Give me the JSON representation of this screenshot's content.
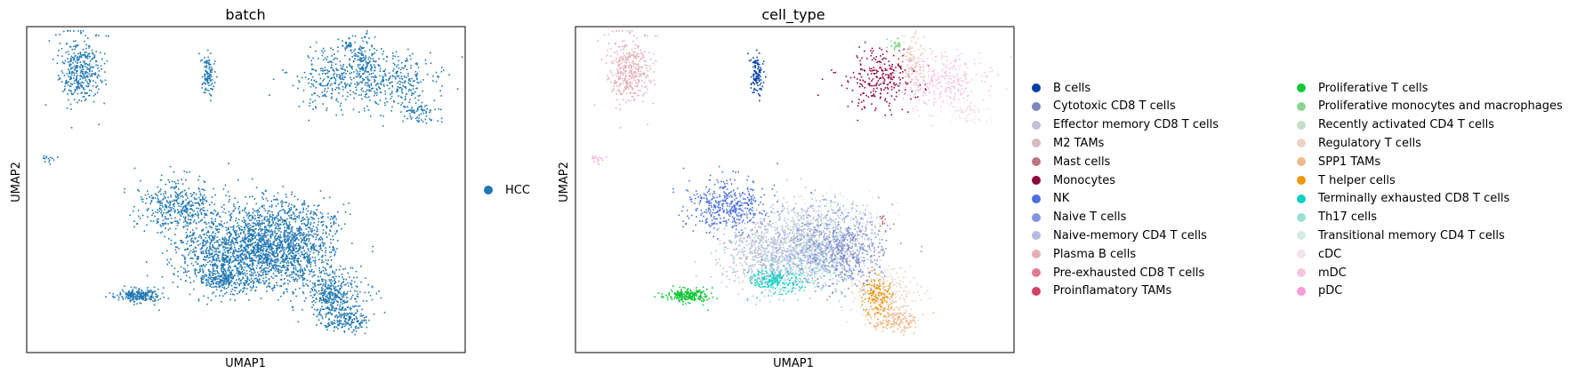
{
  "chart_data": [
    {
      "type": "scatter",
      "title": "batch",
      "xlabel": "UMAP1",
      "ylabel": "UMAP2",
      "legend_placement": "right",
      "grid": false,
      "legend": [
        {
          "label": "HCC",
          "color": "#1f77b4"
        }
      ]
    },
    {
      "type": "scatter",
      "title": "cell_type",
      "xlabel": "UMAP1",
      "ylabel": "UMAP2",
      "legend_placement": "right, two columns",
      "grid": false,
      "legend": [
        {
          "label": "B cells",
          "color": "#023fa5"
        },
        {
          "label": "Cytotoxic CD8 T cells",
          "color": "#7d87b9"
        },
        {
          "label": "Effector memory CD8 T cells",
          "color": "#bec1d4"
        },
        {
          "label": "M2 TAMs",
          "color": "#d6bcc0"
        },
        {
          "label": "Mast cells",
          "color": "#bb7784"
        },
        {
          "label": "Monocytes",
          "color": "#8e063b"
        },
        {
          "label": "NK",
          "color": "#4a6fe3"
        },
        {
          "label": "Naive T cells",
          "color": "#8595e1"
        },
        {
          "label": "Naive-memory CD4 T cells",
          "color": "#b5bbe3"
        },
        {
          "label": "Plasma B cells",
          "color": "#e6afb9"
        },
        {
          "label": "Pre-exhausted CD8 T cells",
          "color": "#e07b91"
        },
        {
          "label": "Proinflamatory TAMs",
          "color": "#d33f6a"
        },
        {
          "label": "Proliferative T cells",
          "color": "#11c638"
        },
        {
          "label": "Proliferative monocytes and macrophages",
          "color": "#8dd593"
        },
        {
          "label": "Recently activated CD4 T cells",
          "color": "#c6dec7"
        },
        {
          "label": "Regulatory T cells",
          "color": "#ead3c6"
        },
        {
          "label": "SPP1 TAMs",
          "color": "#f0b98d"
        },
        {
          "label": "T helper cells",
          "color": "#ef9708"
        },
        {
          "label": "Terminally exhausted CD8 T cells",
          "color": "#0fcfc0"
        },
        {
          "label": "Th17 cells",
          "color": "#9cded6"
        },
        {
          "label": "Transitional memory CD4 T cells",
          "color": "#d5eae7"
        },
        {
          "label": "cDC",
          "color": "#f3e1eb"
        },
        {
          "label": "mDC",
          "color": "#f6c4e1"
        },
        {
          "label": "pDC",
          "color": "#f79cd4"
        }
      ]
    }
  ]
}
